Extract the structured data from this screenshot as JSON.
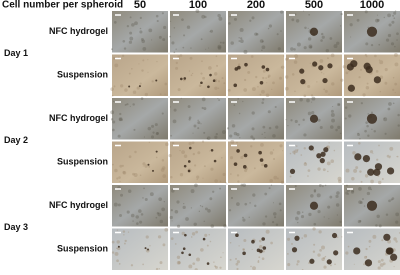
{
  "header": {
    "title": "Cell number per spheroid",
    "columns": [
      "50",
      "100",
      "200",
      "500",
      "1000"
    ]
  },
  "days": [
    {
      "label": "Day 1",
      "rows": [
        "NFC hydrogel",
        "Suspension"
      ]
    },
    {
      "label": "Day 2",
      "rows": [
        "NFC hydrogel",
        "Suspension"
      ]
    },
    {
      "label": "Day 3",
      "rows": [
        "NFC hydrogel",
        "Suspension"
      ]
    }
  ]
}
